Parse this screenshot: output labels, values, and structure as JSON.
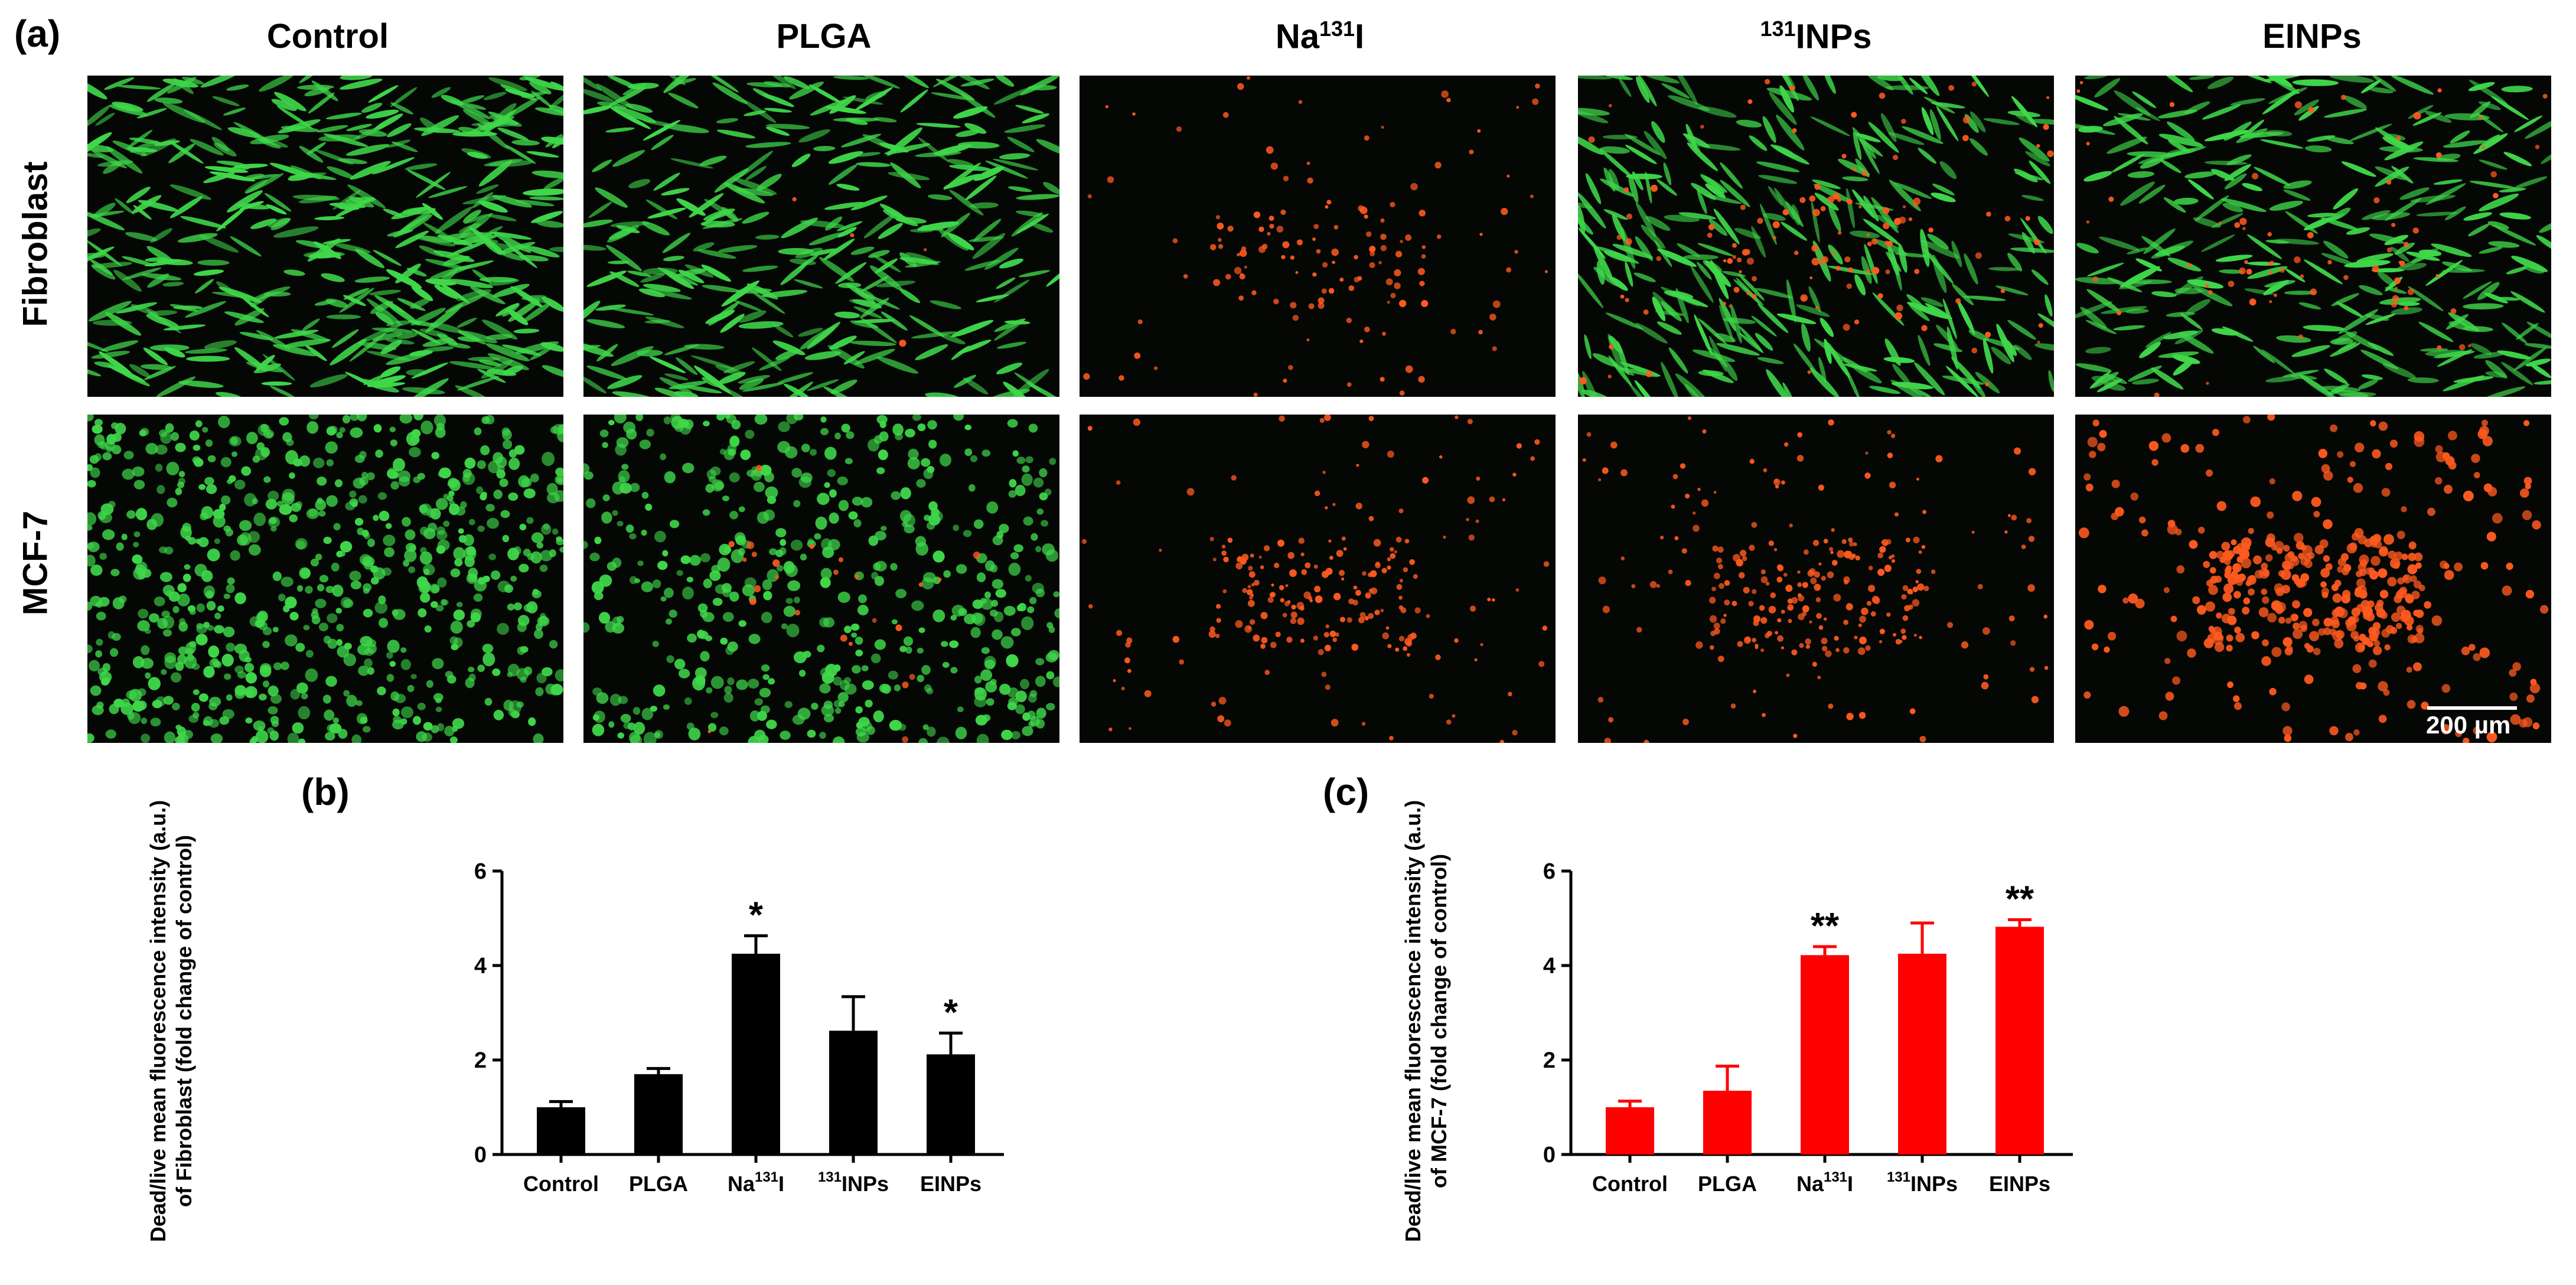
{
  "panel_a": {
    "letter": "(a)",
    "columns": [
      "Control",
      "PLGA",
      "Na131I",
      "131INPs",
      "EINPs"
    ],
    "column_html": [
      "Control",
      "PLGA",
      "Na<sup>131</sup>I",
      "<sup>131</sup>INPs",
      "EINPs"
    ],
    "rows": [
      "Fibroblast",
      "MCF-7"
    ],
    "scale_bar": "200 µm",
    "colors": {
      "live": "#3fd84a",
      "dead": "#ff5a1f",
      "background": "#050705"
    }
  },
  "chart_data": [
    {
      "panel": "(b)",
      "type": "bar",
      "categories": [
        "Control",
        "PLGA",
        "Na131I",
        "131INPs",
        "EINPs"
      ],
      "values": [
        1.0,
        1.7,
        4.25,
        2.62,
        2.12
      ],
      "errors": [
        0.12,
        0.12,
        0.38,
        0.72,
        0.45
      ],
      "significance": [
        "",
        "",
        "*",
        "",
        "*"
      ],
      "ylabel": "Dead/live mean fluorescence intensity (a.u.) of Fibroblast (fold change of control)",
      "ylim": [
        0,
        6
      ],
      "yticks": [
        "0",
        "2",
        "4",
        "6"
      ],
      "color": "#000000"
    },
    {
      "panel": "(c)",
      "type": "bar",
      "categories": [
        "Control",
        "PLGA",
        "Na131I",
        "131INPs",
        "EINPs"
      ],
      "values": [
        1.0,
        1.35,
        4.22,
        4.25,
        4.82
      ],
      "errors": [
        0.13,
        0.52,
        0.18,
        0.65,
        0.15
      ],
      "significance": [
        "",
        "",
        "**",
        "",
        "**"
      ],
      "ylabel": "Dead/live mean fluorescence intensity (a.u.) of MCF-7 (fold change of control)",
      "ylim": [
        0,
        6
      ],
      "yticks": [
        "0",
        "2",
        "4",
        "6"
      ],
      "color": "#ff0000"
    }
  ]
}
